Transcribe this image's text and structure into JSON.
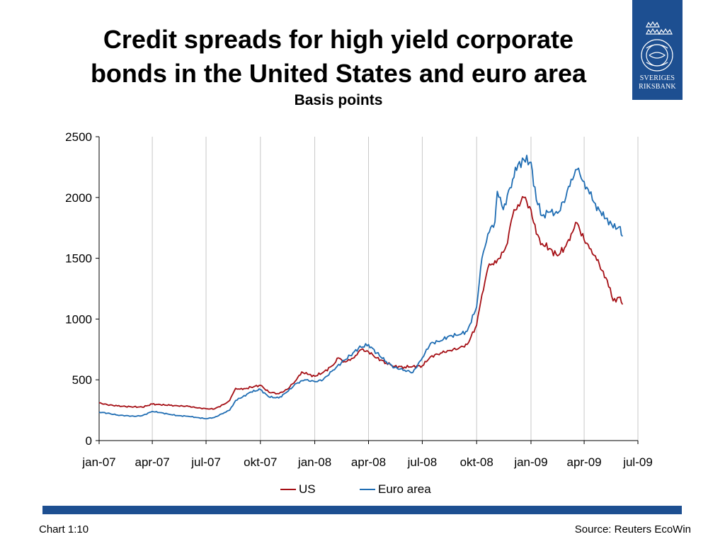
{
  "title_line1": "Credit spreads for high yield corporate",
  "title_line2": "bonds in the United States and euro area",
  "subtitle": "Basis points",
  "logo": {
    "icon": "riksbank-crest-icon",
    "line1": "SVERIGES",
    "line2": "RIKSBANK",
    "color": "#1d4f91"
  },
  "footer": {
    "chart_number": "Chart 1:10",
    "source": "Source: Reuters EcoWin",
    "bar_color": "#1d4f91"
  },
  "chart_data": {
    "type": "line",
    "title": "Credit spreads for high yield corporate bonds in the United States and euro area",
    "subtitle": "Basis points",
    "xlabel": "",
    "ylabel": "",
    "ylim": [
      0,
      2500
    ],
    "yticks": [
      0,
      500,
      1000,
      1500,
      2000,
      2500
    ],
    "xlim": [
      "2007-01-01",
      "2009-07-01"
    ],
    "xtick_values": [
      "2007-01-01",
      "2007-04-01",
      "2007-07-01",
      "2007-10-01",
      "2008-01-01",
      "2008-04-01",
      "2008-07-01",
      "2008-10-01",
      "2009-01-01",
      "2009-04-01",
      "2009-07-01"
    ],
    "xtick_labels": [
      "jan-07",
      "apr-07",
      "jul-07",
      "okt-07",
      "jan-08",
      "apr-08",
      "jul-08",
      "okt-08",
      "jan-09",
      "apr-09",
      "jul-09"
    ],
    "grid": {
      "vertical": true,
      "horizontal": false
    },
    "legend_position": "bottom-center",
    "series": [
      {
        "name": "US",
        "color": "#a50f15",
        "points": [
          [
            "2007-01-01",
            310
          ],
          [
            "2007-01-15",
            295
          ],
          [
            "2007-02-01",
            285
          ],
          [
            "2007-02-15",
            280
          ],
          [
            "2007-03-01",
            278
          ],
          [
            "2007-03-15",
            275
          ],
          [
            "2007-04-01",
            300
          ],
          [
            "2007-04-15",
            295
          ],
          [
            "2007-05-01",
            290
          ],
          [
            "2007-05-15",
            285
          ],
          [
            "2007-06-01",
            282
          ],
          [
            "2007-06-15",
            270
          ],
          [
            "2007-07-01",
            262
          ],
          [
            "2007-07-15",
            260
          ],
          [
            "2007-08-01",
            300
          ],
          [
            "2007-08-10",
            330
          ],
          [
            "2007-08-20",
            430
          ],
          [
            "2007-09-01",
            420
          ],
          [
            "2007-09-15",
            440
          ],
          [
            "2007-10-01",
            455
          ],
          [
            "2007-10-15",
            400
          ],
          [
            "2007-11-01",
            385
          ],
          [
            "2007-11-15",
            420
          ],
          [
            "2007-12-01",
            500
          ],
          [
            "2007-12-10",
            565
          ],
          [
            "2007-12-20",
            545
          ],
          [
            "2008-01-01",
            530
          ],
          [
            "2008-01-15",
            560
          ],
          [
            "2008-02-01",
            620
          ],
          [
            "2008-02-10",
            680
          ],
          [
            "2008-02-20",
            650
          ],
          [
            "2008-03-01",
            660
          ],
          [
            "2008-03-10",
            700
          ],
          [
            "2008-03-20",
            750
          ],
          [
            "2008-04-01",
            730
          ],
          [
            "2008-04-15",
            680
          ],
          [
            "2008-05-01",
            640
          ],
          [
            "2008-05-15",
            610
          ],
          [
            "2008-06-01",
            605
          ],
          [
            "2008-06-15",
            610
          ],
          [
            "2008-07-01",
            615
          ],
          [
            "2008-07-15",
            690
          ],
          [
            "2008-08-01",
            720
          ],
          [
            "2008-08-15",
            740
          ],
          [
            "2008-09-01",
            760
          ],
          [
            "2008-09-15",
            790
          ],
          [
            "2008-10-01",
            950
          ],
          [
            "2008-10-10",
            1200
          ],
          [
            "2008-10-20",
            1420
          ],
          [
            "2008-11-01",
            1480
          ],
          [
            "2008-11-10",
            1500
          ],
          [
            "2008-11-20",
            1600
          ],
          [
            "2008-12-01",
            1850
          ],
          [
            "2008-12-10",
            1940
          ],
          [
            "2008-12-20",
            2000
          ],
          [
            "2009-01-01",
            1900
          ],
          [
            "2009-01-10",
            1700
          ],
          [
            "2009-01-20",
            1620
          ],
          [
            "2009-02-01",
            1580
          ],
          [
            "2009-02-15",
            1520
          ],
          [
            "2009-03-01",
            1600
          ],
          [
            "2009-03-10",
            1700
          ],
          [
            "2009-03-20",
            1790
          ],
          [
            "2009-04-01",
            1650
          ],
          [
            "2009-04-10",
            1580
          ],
          [
            "2009-04-20",
            1520
          ],
          [
            "2009-05-01",
            1400
          ],
          [
            "2009-05-10",
            1320
          ],
          [
            "2009-05-20",
            1150
          ],
          [
            "2009-06-01",
            1180
          ],
          [
            "2009-06-05",
            1120
          ]
        ]
      },
      {
        "name": "Euro area",
        "color": "#1f6db3",
        "points": [
          [
            "2007-01-01",
            235
          ],
          [
            "2007-01-15",
            225
          ],
          [
            "2007-02-01",
            210
          ],
          [
            "2007-02-15",
            205
          ],
          [
            "2007-03-01",
            200
          ],
          [
            "2007-03-15",
            205
          ],
          [
            "2007-04-01",
            240
          ],
          [
            "2007-04-15",
            230
          ],
          [
            "2007-05-01",
            215
          ],
          [
            "2007-05-15",
            205
          ],
          [
            "2007-06-01",
            200
          ],
          [
            "2007-06-15",
            190
          ],
          [
            "2007-07-01",
            180
          ],
          [
            "2007-07-15",
            190
          ],
          [
            "2007-08-01",
            230
          ],
          [
            "2007-08-10",
            250
          ],
          [
            "2007-08-20",
            330
          ],
          [
            "2007-09-01",
            360
          ],
          [
            "2007-09-15",
            400
          ],
          [
            "2007-10-01",
            420
          ],
          [
            "2007-10-15",
            360
          ],
          [
            "2007-11-01",
            350
          ],
          [
            "2007-11-15",
            400
          ],
          [
            "2007-12-01",
            470
          ],
          [
            "2007-12-15",
            500
          ],
          [
            "2008-01-01",
            485
          ],
          [
            "2008-01-15",
            500
          ],
          [
            "2008-02-01",
            580
          ],
          [
            "2008-02-15",
            640
          ],
          [
            "2008-03-01",
            700
          ],
          [
            "2008-03-15",
            760
          ],
          [
            "2008-04-01",
            790
          ],
          [
            "2008-04-15",
            720
          ],
          [
            "2008-05-01",
            650
          ],
          [
            "2008-05-15",
            600
          ],
          [
            "2008-06-01",
            580
          ],
          [
            "2008-06-15",
            560
          ],
          [
            "2008-07-01",
            680
          ],
          [
            "2008-07-15",
            800
          ],
          [
            "2008-08-01",
            820
          ],
          [
            "2008-08-15",
            860
          ],
          [
            "2008-09-01",
            870
          ],
          [
            "2008-09-15",
            900
          ],
          [
            "2008-10-01",
            1100
          ],
          [
            "2008-10-10",
            1500
          ],
          [
            "2008-10-20",
            1700
          ],
          [
            "2008-11-01",
            1800
          ],
          [
            "2008-11-05",
            2050
          ],
          [
            "2008-11-15",
            1900
          ],
          [
            "2008-12-01",
            2150
          ],
          [
            "2008-12-10",
            2270
          ],
          [
            "2008-12-20",
            2310
          ],
          [
            "2009-01-01",
            2290
          ],
          [
            "2009-01-10",
            1980
          ],
          [
            "2009-01-20",
            1850
          ],
          [
            "2009-02-01",
            1880
          ],
          [
            "2009-02-15",
            1870
          ],
          [
            "2009-03-01",
            2000
          ],
          [
            "2009-03-10",
            2150
          ],
          [
            "2009-03-20",
            2230
          ],
          [
            "2009-04-01",
            2130
          ],
          [
            "2009-04-10",
            2030
          ],
          [
            "2009-04-20",
            1950
          ],
          [
            "2009-05-01",
            1850
          ],
          [
            "2009-05-10",
            1830
          ],
          [
            "2009-05-20",
            1750
          ],
          [
            "2009-06-01",
            1760
          ],
          [
            "2009-06-05",
            1680
          ]
        ]
      }
    ]
  }
}
